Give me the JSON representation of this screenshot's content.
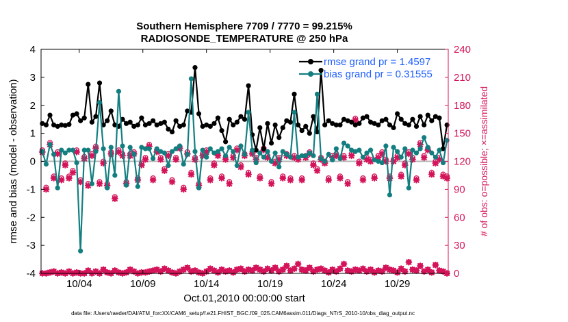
{
  "colors": {
    "rmse": "#000000",
    "bias": "#137e80",
    "obs": "#d4145a",
    "zero_line": "#b4b4b4",
    "legend_text": "#1f5fff"
  },
  "chart_data": {
    "type": "line",
    "title": "Southern Hemisphere 7709 / 7770 = 99.215%",
    "subtitle": "RADIOSONDE_TEMPERATURE @ 250 hPa",
    "xlabel": "Oct.01,2010 00:00:00 start",
    "ylabel_left": "rmse and bias (model - observation)",
    "ylabel_right": "# of obs: o=possible; ×=assimilated",
    "footer": "data file: /Users/raeder/DAI/ATM_forcXX/CAM6_setup/f.e21.FHIST_BGC.f09_025.CAM6assim.011/Diags_NTrS_2010-10/obs_diag_output.nc",
    "x_range": [
      1,
      33
    ],
    "x_ticks": [
      4,
      9,
      14,
      19,
      24,
      29
    ],
    "x_tick_labels": [
      "10/04",
      "10/09",
      "10/14",
      "10/19",
      "10/24",
      "10/29"
    ],
    "ylim_left": [
      -4,
      4
    ],
    "y_ticks_left": [
      "-4",
      "-3",
      "-2",
      "-1",
      "0",
      "1",
      "2",
      "3",
      "4"
    ],
    "ylim_right": [
      0,
      240
    ],
    "y_ticks_right": [
      "0",
      "30",
      "60",
      "90",
      "120",
      "150",
      "180",
      "210",
      "240"
    ],
    "legend": [
      "rmse grand pr = 1.4597",
      "bias grand pr = 0.31555"
    ],
    "series": [
      {
        "name": "rmse",
        "values": [
          1.35,
          1.3,
          1.65,
          1.3,
          1.25,
          1.3,
          1.28,
          1.32,
          1.65,
          1.7,
          1.45,
          1.55,
          2.75,
          1.4,
          1.6,
          2.8,
          1.3,
          1.45,
          1.8,
          1.3,
          1.25,
          1.5,
          1.35,
          1.4,
          1.25,
          1.3,
          1.55,
          1.3,
          1.35,
          1.45,
          1.3,
          1.35,
          1.4,
          1.15,
          1.05,
          1.45,
          1.25,
          1.3,
          1.8,
          1.75,
          3.35,
          1.7,
          1.25,
          1.3,
          1.25,
          1.35,
          1.55,
          1.1,
          0.7,
          1.5,
          1.3,
          1.4,
          1.6,
          1.5,
          2.7,
          0.95,
          0.4,
          1.2,
          0.45,
          1.35,
          0.65,
          1.3,
          0.85,
          1.2,
          1.45,
          1.4,
          2.4,
          1.3,
          1.1,
          1.25,
          1.0,
          1.6,
          1.05,
          3.25,
          1.3,
          1.45,
          1.35,
          1.3,
          1.3,
          1.5,
          1.45,
          1.4,
          1.3,
          1.35,
          1.55,
          1.6,
          1.4,
          1.35,
          1.3,
          1.45,
          1.5,
          1.3,
          1.2,
          1.7,
          1.5,
          1.35,
          1.3,
          1.5,
          1.25,
          1.6,
          1.3,
          1.65,
          1.45,
          1.6,
          1.55,
          0.45,
          1.3
        ]
      },
      {
        "name": "bias",
        "values": [
          0.35,
          -0.1,
          0.6,
          0.25,
          -0.95,
          0.4,
          0.3,
          0.4,
          0.4,
          -0.05,
          -3.2,
          0.4,
          0.4,
          -0.8,
          0.35,
          2.1,
          0.45,
          -0.95,
          0.5,
          -0.5,
          2.5,
          0.55,
          -0.85,
          0.5,
          0.25,
          -0.9,
          0.5,
          0.45,
          0.45,
          0.1,
          0.45,
          0.35,
          0.3,
          -0.15,
          0.35,
          0.45,
          0.55,
          -0.1,
          0.25,
          2.95,
          0.35,
          -0.95,
          0.4,
          0.15,
          0.45,
          0.3,
          0.35,
          0.45,
          0.2,
          0.5,
          0.35,
          -0.15,
          0.55,
          0.25,
          1.75,
          0.4,
          -0.05,
          0.3,
          0.15,
          0.35,
          0.0,
          0.3,
          -0.2,
          0.35,
          0.25,
          0.15,
          1.75,
          0.15,
          0.2,
          0.2,
          0.3,
          0.2,
          2.4,
          0.1,
          0.0,
          0.25,
          0.05,
          0.45,
          0.1,
          0.65,
          0.55,
          0.4,
          0.35,
          0.4,
          0.15,
          0.3,
          0.4,
          0.05,
          0.0,
          -0.05,
          0.55,
          -1.2,
          0.5,
          0.35,
          0.15,
          0.45,
          -0.95,
          0.4,
          0.3,
          0.45,
          0.85,
          0.5,
          0.3,
          0.15,
          0.4,
          -0.05,
          0.75
        ]
      },
      {
        "name": "obs_possible",
        "values": [
          132,
          92,
          140,
          104,
          130,
          102,
          118,
          104,
          110,
          132,
          100,
          125,
          96,
          128,
          136,
          98,
          120,
          96,
          130,
          82,
          132,
          128,
          98,
          128,
          130,
          102,
          118,
          124,
          138,
          102,
          132,
          124,
          112,
          128,
          100,
          124,
          136,
          92,
          130,
          108,
          124,
          96,
          128,
          132,
          102,
          118,
          128,
          104,
          124,
          98,
          126,
          134,
          116,
          128,
          108,
          130,
          124,
          104,
          134,
          126,
          98,
          120,
          124,
          104,
          128,
          102,
          126,
          124,
          102,
          126,
          130,
          118,
          112,
          124,
          120,
          102,
          126,
          128,
          104,
          126,
          98,
          128,
          166,
          120,
          102,
          124,
          122,
          104,
          126,
          130,
          122,
          104,
          122,
          126,
          106,
          118,
          130,
          124,
          102,
          140,
          126,
          134,
          108,
          120,
          124,
          106,
          104
        ]
      },
      {
        "name": "obs_assimilated",
        "values": [
          130,
          90,
          138,
          102,
          128,
          100,
          116,
          102,
          108,
          130,
          98,
          123,
          94,
          126,
          134,
          96,
          118,
          94,
          128,
          80,
          130,
          126,
          96,
          126,
          128,
          100,
          116,
          122,
          136,
          100,
          130,
          122,
          110,
          126,
          98,
          122,
          134,
          90,
          128,
          106,
          122,
          94,
          126,
          130,
          100,
          116,
          126,
          102,
          122,
          96,
          124,
          132,
          114,
          126,
          106,
          128,
          122,
          102,
          132,
          124,
          96,
          118,
          122,
          102,
          126,
          100,
          124,
          122,
          100,
          124,
          128,
          116,
          110,
          122,
          118,
          100,
          124,
          126,
          102,
          124,
          96,
          126,
          164,
          118,
          100,
          122,
          120,
          102,
          124,
          128,
          120,
          102,
          120,
          124,
          104,
          116,
          128,
          122,
          100,
          138,
          124,
          132,
          106,
          118,
          122,
          104,
          102
        ]
      },
      {
        "name": "obs_possible_low",
        "values": [
          0,
          0,
          1,
          2,
          0,
          1,
          0,
          2,
          0,
          1,
          0,
          0,
          3,
          0,
          2,
          0,
          4,
          1,
          0,
          3,
          1,
          0,
          1,
          4,
          2,
          0,
          1,
          1,
          2,
          3,
          4,
          2,
          5,
          3,
          1,
          0,
          2,
          4,
          6,
          2,
          3,
          1,
          0,
          2,
          5,
          3,
          1,
          4,
          2,
          3,
          1,
          4,
          5,
          2,
          4,
          3,
          6,
          4,
          2,
          5,
          3,
          6,
          2,
          4,
          8,
          3,
          5,
          10,
          4,
          3,
          6,
          2,
          4,
          5,
          3,
          1,
          4,
          2,
          5,
          10,
          3,
          2,
          4,
          3,
          5,
          2,
          4,
          1,
          3,
          2,
          6,
          4,
          3,
          1,
          5,
          2,
          12,
          4,
          3,
          8,
          2,
          4,
          1,
          9,
          3,
          2,
          0
        ]
      }
    ]
  }
}
